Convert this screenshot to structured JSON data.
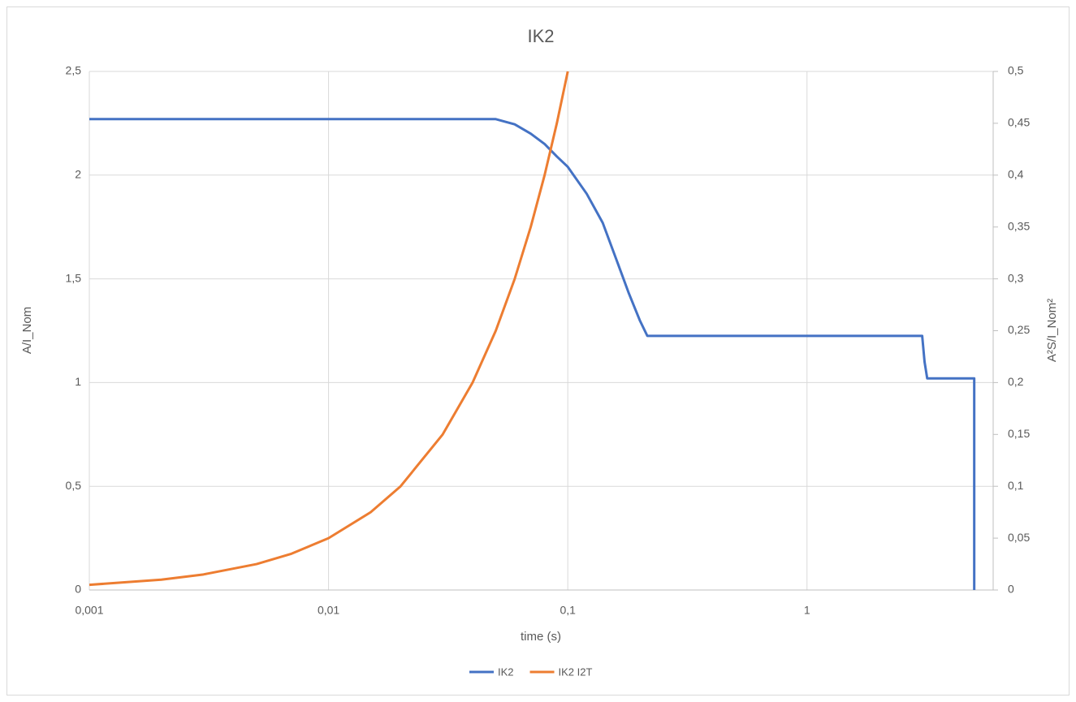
{
  "chart_data": {
    "type": "line",
    "title": "IK2",
    "x_label": "time (s)",
    "y_label": "A/I_Nom",
    "y2_label": "A²S/I_Nom²",
    "xlog": true,
    "grid": true,
    "legend": "bottom",
    "xlim": [
      0.001,
      6
    ],
    "xticks": [
      {
        "value": 0.001,
        "label": "0,001"
      },
      {
        "value": 0.01,
        "label": "0,01"
      },
      {
        "value": 0.1,
        "label": "0,1"
      },
      1
    ],
    "ylim": [
      0,
      2.5
    ],
    "yticks": [
      0,
      {
        "value": 0.5,
        "label": "0,5"
      },
      1,
      {
        "value": 1.5,
        "label": "1,5"
      },
      2,
      {
        "value": 2.5,
        "label": "2,5"
      }
    ],
    "y2lim": [
      0,
      0.5
    ],
    "y2ticks": [
      0,
      {
        "value": 0.05,
        "label": "0,05"
      },
      {
        "value": 0.1,
        "label": "0,1"
      },
      {
        "value": 0.15,
        "label": "0,15"
      },
      {
        "value": 0.2,
        "label": "0,2"
      },
      {
        "value": 0.25,
        "label": "0,25"
      },
      {
        "value": 0.3,
        "label": "0,3"
      },
      {
        "value": 0.35,
        "label": "0,35"
      },
      {
        "value": 0.4,
        "label": "0,4"
      },
      {
        "value": 0.45,
        "label": "0,45"
      },
      {
        "value": 0.5,
        "label": "0,5"
      }
    ],
    "series": [
      {
        "name": "IK2",
        "color": "#4472c4",
        "x": [
          0.001,
          0.05,
          0.06,
          0.07,
          0.08,
          0.09,
          0.1,
          0.12,
          0.14,
          0.16,
          0.18,
          0.2,
          0.215,
          3.03,
          3.1,
          3.18,
          5,
          5
        ],
        "values": [
          2.27,
          2.27,
          2.245,
          2.2,
          2.15,
          2.09,
          2.04,
          1.91,
          1.77,
          1.59,
          1.43,
          1.3,
          1.225,
          1.225,
          1.1,
          1.02,
          1.02,
          0
        ]
      },
      {
        "name": "IK2 I2T",
        "color": "#ed7d31",
        "axis": "y2",
        "x": [
          0.001,
          0.002,
          0.003,
          0.005,
          0.007,
          0.01,
          0.015,
          0.02,
          0.03,
          0.04,
          0.05,
          0.06,
          0.07,
          0.08,
          0.09,
          0.1
        ],
        "values": [
          0.005,
          0.01,
          0.015,
          0.025,
          0.035,
          0.05,
          0.075,
          0.1,
          0.15,
          0.2,
          0.25,
          0.3,
          0.35,
          0.4,
          0.45,
          0.5
        ]
      }
    ]
  }
}
